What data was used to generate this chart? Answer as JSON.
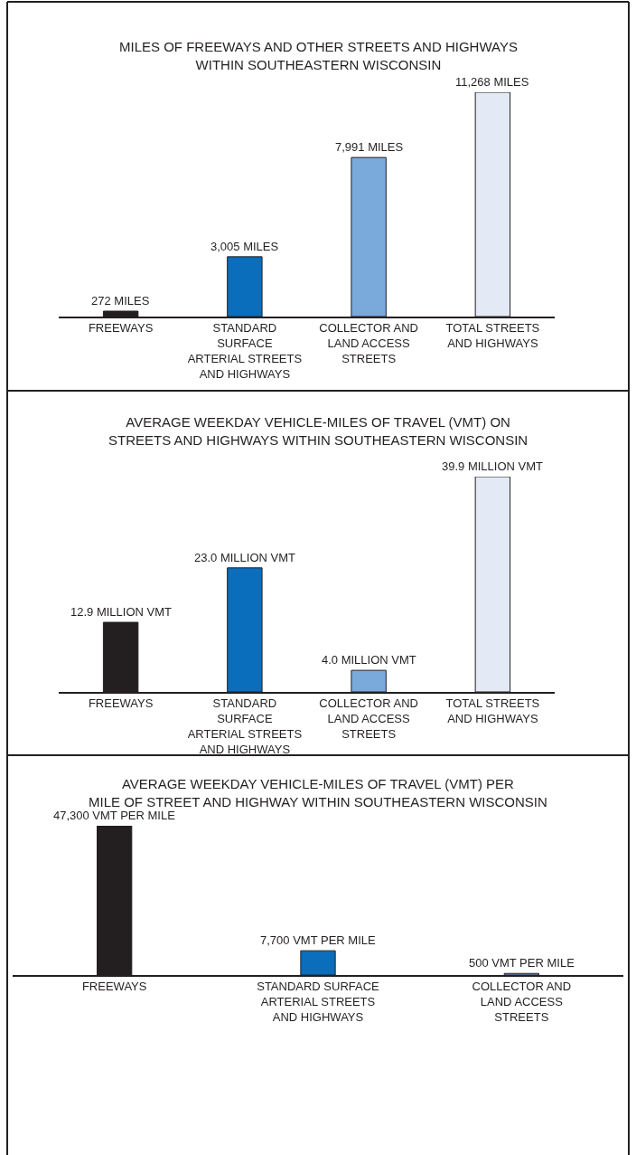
{
  "chart_data": [
    {
      "type": "bar",
      "title": "MILES OF FREEWAYS AND OTHER STREETS AND HIGHWAYS\nWITHIN SOUTHEASTERN WISCONSIN",
      "categories": [
        "FREEWAYS",
        "STANDARD\nSURFACE\nARTERIAL STREETS\nAND HIGHWAYS",
        "COLLECTOR AND\nLAND ACCESS\nSTREETS",
        "TOTAL STREETS\nAND HIGHWAYS"
      ],
      "values": [
        272,
        3005,
        7991,
        11268
      ],
      "colors": [
        "#231f20",
        "#0a6ebd",
        "#7aa9dc",
        "#e3eaf6"
      ],
      "value_labels": [
        "272 MILES",
        "3,005 MILES",
        "7,991 MILES",
        "11,268 MILES"
      ]
    },
    {
      "type": "bar",
      "title": "AVERAGE WEEKDAY VEHICLE-MILES OF TRAVEL (VMT) ON\nSTREETS AND HIGHWAYS WITHIN SOUTHEASTERN WISCONSIN",
      "categories": [
        "FREEWAYS",
        "STANDARD\nSURFACE\nARTERIAL STREETS\nAND HIGHWAYS",
        "COLLECTOR AND\nLAND ACCESS\nSTREETS",
        "TOTAL STREETS\nAND HIGHWAYS"
      ],
      "values": [
        12.9,
        23.0,
        4.0,
        39.9
      ],
      "colors": [
        "#231f20",
        "#0a6ebd",
        "#7aa9dc",
        "#e3eaf6"
      ],
      "value_labels": [
        "12.9 MILLION VMT",
        "23.0 MILLION VMT",
        "4.0 MILLION VMT",
        "39.9 MILLION VMT"
      ]
    },
    {
      "type": "bar",
      "title": "AVERAGE WEEKDAY VEHICLE-MILES OF TRAVEL (VMT) PER\nMILE OF STREET AND HIGHWAY WITHIN SOUTHEASTERN WISCONSIN",
      "categories": [
        "FREEWAYS",
        "STANDARD SURFACE\nARTERIAL STREETS\nAND HIGHWAYS",
        "COLLECTOR AND\nLAND ACCESS\nSTREETS"
      ],
      "values": [
        47300,
        7700,
        500
      ],
      "colors": [
        "#231f20",
        "#0a6ebd",
        "#7aa9dc"
      ],
      "value_labels": [
        "47,300 VMT PER MILE",
        "7,700 VMT PER MILE",
        "500 VMT PER MILE"
      ]
    }
  ]
}
